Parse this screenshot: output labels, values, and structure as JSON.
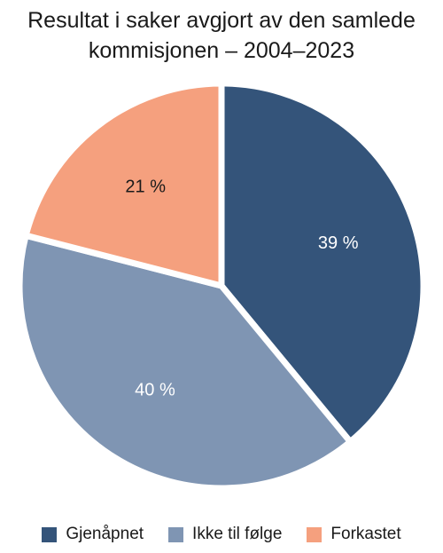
{
  "chart_data": {
    "type": "pie",
    "title": [
      "Resultat i saker avgjort av den samlede",
      "kommisjonen – 2004–2023"
    ],
    "series": [
      {
        "name": "Gjenåpnet",
        "value": 39,
        "label": "39 %",
        "color": "#34547a",
        "label_color": "#ffffff"
      },
      {
        "name": "Ikke til følge",
        "value": 40,
        "label": "40 %",
        "color": "#7f95b3",
        "label_color": "#ffffff"
      },
      {
        "name": "Forkastet",
        "value": 21,
        "label": "21 %",
        "color": "#f5a07e",
        "label_color": "#1a1a1a"
      }
    ],
    "legend": {
      "position": "bottom"
    },
    "start_angle_deg": 0,
    "direction": "clockwise"
  }
}
